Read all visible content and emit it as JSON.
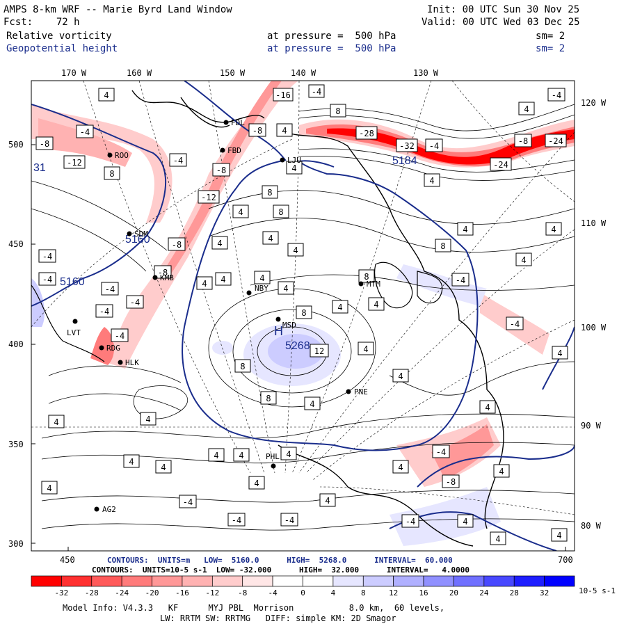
{
  "header": {
    "model_title": "AMPS 8-km WRF -- Marie Byrd Land Window",
    "forecast": "Fcst:    72 h",
    "init": "Init: 00 UTC Sun 30 Nov 25",
    "valid": "Valid: 00 UTC Wed 03 Dec 25",
    "field1_name": "Relative vorticity",
    "field1_level": "at pressure =  500 hPa",
    "field1_smooth": "sm= 2",
    "field2_name": "Geopotential height",
    "field2_level": "at pressure =  500 hPa",
    "field2_smooth": "sm= 2"
  },
  "axes": {
    "top_longitudes": [
      "170 W",
      "160 W",
      "150 W",
      "140 W",
      "130 W"
    ],
    "right_longitudes": [
      "120 W",
      "110 W",
      "100 W",
      "90 W",
      "80 W"
    ],
    "left_ticks": [
      "500",
      "450",
      "400",
      "350",
      "300"
    ],
    "bottom_ticks": [
      "450",
      "700"
    ]
  },
  "stations": [
    "FDL",
    "FBD",
    "ROO",
    "LJU",
    "SDM",
    "KMB",
    "NBY",
    "MTM",
    "MSD",
    "LVT",
    "RDG",
    "HLK",
    "PNE",
    "PHL",
    "AG2"
  ],
  "height_labels": [
    "5160",
    "5160",
    "5268",
    "5184",
    "31"
  ],
  "h_marker": "H",
  "vorticity_labels": [
    "-4",
    "-8",
    "-12",
    "-16",
    "-24",
    "-28",
    "-32",
    "4",
    "8",
    "12"
  ],
  "contour_info": {
    "line1": "CONTOURS:  UNITS=m   LOW=  5160.0      HIGH=  5268.0      INTERVAL=  60.000",
    "line2": "CONTOURS:  UNITS=10-5 s-1  LOW= -32.000      HIGH=  32.000      INTERVAL=   4.0000"
  },
  "colorbar": {
    "labels": [
      "-32",
      "-28",
      "-24",
      "-20",
      "-16",
      "-12",
      "-8",
      "-4",
      "0",
      "4",
      "8",
      "12",
      "16",
      "20",
      "24",
      "28",
      "32"
    ],
    "units": "10-5 s-1",
    "colors": [
      "#ff0000",
      "#ff3030",
      "#ff5a5a",
      "#ff7b7b",
      "#ff9898",
      "#ffb2b2",
      "#ffcccc",
      "#ffe6e6",
      "#ffffff",
      "#ffffff",
      "#e6e6ff",
      "#ccccff",
      "#b0b0ff",
      "#9090ff",
      "#7070ff",
      "#4848ff",
      "#1e1eff",
      "#0000ff"
    ]
  },
  "footer": {
    "line1": "Model Info: V4.3.3   KF      MYJ PBL  Morrison           8.0 km,  60 levels,",
    "line2": "LW: RRTM SW: RRTMG   DIFF: simple KM: 2D Smagor"
  }
}
